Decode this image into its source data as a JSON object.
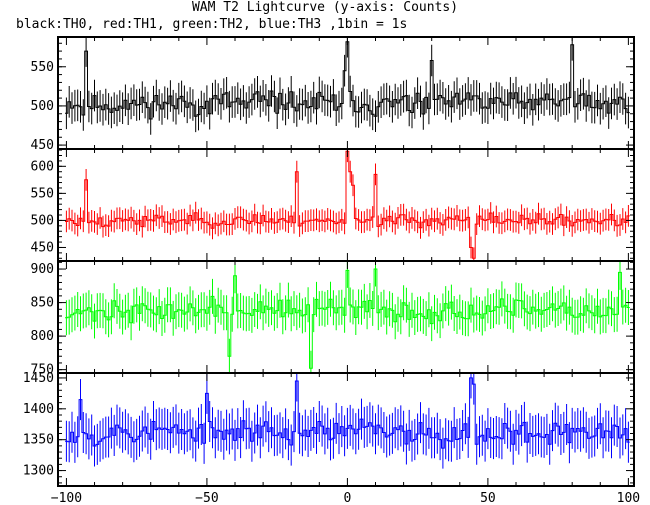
{
  "chart_data": {
    "type": "line",
    "title": "WAM T2 Lightcurve (y-axis: Counts)",
    "subtitle": "black:TH0, red:TH1, green:TH2, blue:TH3 ,1bin = 1s",
    "x_range": [
      -103,
      102
    ],
    "x_ticks": [
      -100,
      -50,
      0,
      50,
      100
    ],
    "series": [
      {
        "name": "TH0",
        "color": "#000000",
        "ylim": [
          445,
          588
        ],
        "yticks": [
          450,
          500,
          550
        ],
        "base": 503,
        "amp": 22,
        "seed": 11,
        "spikes": [
          [
            0,
            582
          ],
          [
            -1,
            545
          ],
          [
            80,
            578
          ],
          [
            -93,
            570
          ],
          [
            30,
            558
          ]
        ]
      },
      {
        "name": "TH1",
        "color": "#ff0000",
        "ylim": [
          425,
          632
        ],
        "yticks": [
          450,
          500,
          550,
          600
        ],
        "base": 500,
        "amp": 17,
        "seed": 23,
        "spikes": [
          [
            0,
            628
          ],
          [
            1,
            590
          ],
          [
            2,
            565
          ],
          [
            -18,
            590
          ],
          [
            -93,
            575
          ],
          [
            10,
            585
          ],
          [
            45,
            430
          ],
          [
            44,
            450
          ]
        ]
      },
      {
        "name": "TH2",
        "color": "#00ff00",
        "ylim": [
          745,
          912
        ],
        "yticks": [
          750,
          800,
          850,
          900
        ],
        "base": 838,
        "amp": 22,
        "seed": 37,
        "spikes": [
          [
            -13,
            752
          ],
          [
            -40,
            890
          ],
          [
            0,
            898
          ],
          [
            10,
            900
          ],
          [
            97,
            895
          ],
          [
            -42,
            770
          ]
        ]
      },
      {
        "name": "TH3",
        "color": "#0000ff",
        "ylim": [
          1275,
          1458
        ],
        "yticks": [
          1300,
          1350,
          1400,
          1450
        ],
        "base": 1362,
        "amp": 30,
        "seed": 53,
        "spikes": [
          [
            -18,
            1445
          ],
          [
            44,
            1450
          ],
          [
            45,
            1440
          ],
          [
            -95,
            1415
          ],
          [
            -50,
            1425
          ]
        ]
      }
    ]
  }
}
